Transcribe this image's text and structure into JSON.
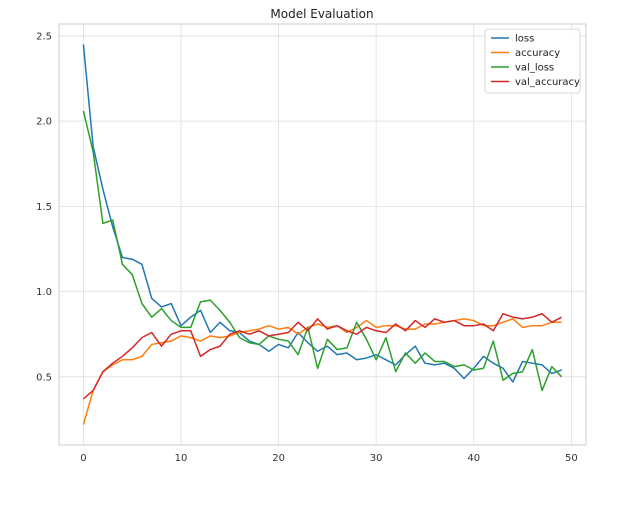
{
  "chart_data": {
    "type": "line",
    "title": "Model Evaluation",
    "xlabel": "",
    "ylabel": "",
    "xlim": [
      -2.5,
      51.5
    ],
    "ylim": [
      0.1,
      2.57
    ],
    "xticks": [
      0,
      10,
      20,
      30,
      40,
      50
    ],
    "yticks": [
      0.5,
      1.0,
      1.5,
      2.0,
      2.5
    ],
    "xtick_labels": [
      "0",
      "10",
      "20",
      "30",
      "40",
      "50"
    ],
    "ytick_labels": [
      "0.5",
      "1.0",
      "1.5",
      "2.0",
      "2.5"
    ],
    "grid": true,
    "legend_position": "top-right",
    "x": [
      0,
      1,
      2,
      3,
      4,
      5,
      6,
      7,
      8,
      9,
      10,
      11,
      12,
      13,
      14,
      15,
      16,
      17,
      18,
      19,
      20,
      21,
      22,
      23,
      24,
      25,
      26,
      27,
      28,
      29,
      30,
      31,
      32,
      33,
      34,
      35,
      36,
      37,
      38,
      39,
      40,
      41,
      42,
      43,
      44,
      45,
      46,
      47,
      48,
      49
    ],
    "series": [
      {
        "name": "loss",
        "color": "#1f77b4",
        "values": [
          2.45,
          1.85,
          1.6,
          1.38,
          1.2,
          1.19,
          1.16,
          0.96,
          0.91,
          0.93,
          0.8,
          0.85,
          0.89,
          0.76,
          0.82,
          0.77,
          0.76,
          0.71,
          0.69,
          0.65,
          0.69,
          0.67,
          0.76,
          0.7,
          0.65,
          0.68,
          0.63,
          0.64,
          0.6,
          0.61,
          0.63,
          0.6,
          0.57,
          0.63,
          0.68,
          0.58,
          0.57,
          0.58,
          0.55,
          0.49,
          0.55,
          0.62,
          0.58,
          0.55,
          0.47,
          0.59,
          0.58,
          0.57,
          0.52,
          0.54
        ]
      },
      {
        "name": "accuracy",
        "color": "#ff7f0e",
        "values": [
          0.22,
          0.42,
          0.53,
          0.57,
          0.6,
          0.6,
          0.62,
          0.69,
          0.7,
          0.71,
          0.74,
          0.73,
          0.71,
          0.74,
          0.73,
          0.74,
          0.76,
          0.77,
          0.78,
          0.8,
          0.78,
          0.79,
          0.75,
          0.79,
          0.81,
          0.79,
          0.8,
          0.76,
          0.79,
          0.83,
          0.79,
          0.8,
          0.8,
          0.78,
          0.78,
          0.81,
          0.81,
          0.82,
          0.83,
          0.84,
          0.83,
          0.8,
          0.8,
          0.82,
          0.84,
          0.79,
          0.8,
          0.8,
          0.82,
          0.82
        ]
      },
      {
        "name": "val_loss",
        "color": "#2ca02c",
        "values": [
          2.06,
          1.82,
          1.4,
          1.42,
          1.16,
          1.1,
          0.93,
          0.85,
          0.9,
          0.83,
          0.79,
          0.79,
          0.94,
          0.95,
          0.89,
          0.82,
          0.73,
          0.7,
          0.69,
          0.74,
          0.72,
          0.71,
          0.63,
          0.79,
          0.55,
          0.72,
          0.66,
          0.67,
          0.82,
          0.72,
          0.6,
          0.73,
          0.53,
          0.64,
          0.58,
          0.64,
          0.59,
          0.59,
          0.56,
          0.57,
          0.54,
          0.55,
          0.71,
          0.48,
          0.52,
          0.53,
          0.66,
          0.42,
          0.56,
          0.5
        ]
      },
      {
        "name": "val_accuracy",
        "color": "#d62728",
        "values": [
          0.37,
          0.42,
          0.53,
          0.58,
          0.62,
          0.67,
          0.73,
          0.76,
          0.68,
          0.75,
          0.77,
          0.77,
          0.62,
          0.66,
          0.68,
          0.75,
          0.77,
          0.75,
          0.77,
          0.74,
          0.75,
          0.76,
          0.82,
          0.77,
          0.84,
          0.78,
          0.8,
          0.77,
          0.75,
          0.79,
          0.77,
          0.76,
          0.81,
          0.77,
          0.83,
          0.79,
          0.84,
          0.82,
          0.83,
          0.8,
          0.8,
          0.81,
          0.77,
          0.87,
          0.85,
          0.84,
          0.85,
          0.87,
          0.82,
          0.85
        ]
      }
    ]
  }
}
